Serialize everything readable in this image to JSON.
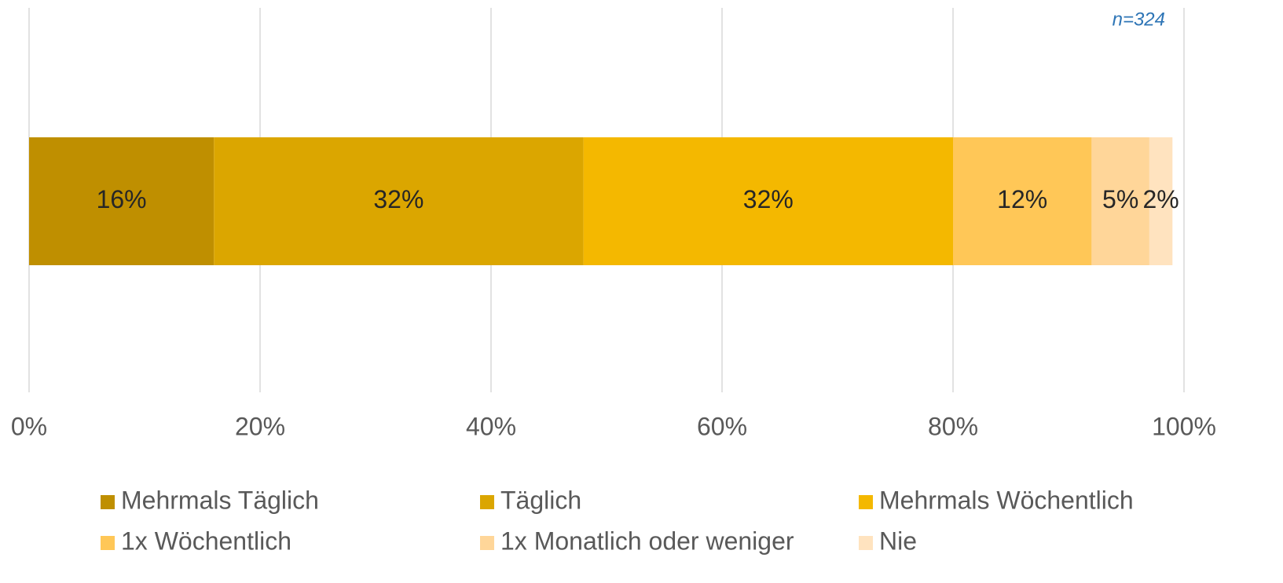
{
  "chart_data": {
    "type": "bar",
    "orientation": "horizontal",
    "stacked": true,
    "annotation": "n=324",
    "categories": [
      null
    ],
    "series": [
      {
        "name": "Mehrmals Täglich",
        "color": "#bf8f00",
        "values": [
          16
        ],
        "value_labels": [
          "16%"
        ]
      },
      {
        "name": "Täglich",
        "color": "#dba600",
        "values": [
          32
        ],
        "value_labels": [
          "32%"
        ]
      },
      {
        "name": "Mehrmals Wöchentlich",
        "color": "#f4b800",
        "values": [
          32
        ],
        "value_labels": [
          "32%"
        ]
      },
      {
        "name": "1x Wöchentlich",
        "color": "#ffc757",
        "values": [
          12
        ],
        "value_labels": [
          "12%"
        ]
      },
      {
        "name": "1x Monatlich oder weniger",
        "color": "#ffd699",
        "values": [
          5
        ],
        "value_labels": [
          "5%"
        ]
      },
      {
        "name": "Nie",
        "color": "#ffe3bf",
        "values": [
          2
        ],
        "value_labels": [
          "2%"
        ]
      }
    ],
    "xlim": [
      0,
      100
    ],
    "xticks": [
      {
        "value": 0,
        "label": "0%"
      },
      {
        "value": 20,
        "label": "20%"
      },
      {
        "value": 40,
        "label": "40%"
      },
      {
        "value": 60,
        "label": "60%"
      },
      {
        "value": 80,
        "label": "80%"
      },
      {
        "value": 100,
        "label": "100%"
      }
    ],
    "grid": true,
    "legend": "bottom"
  }
}
